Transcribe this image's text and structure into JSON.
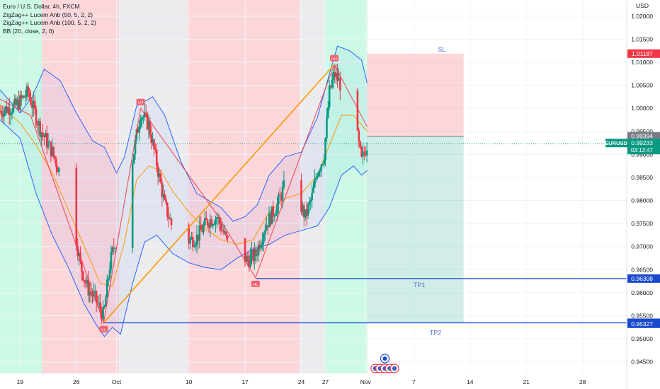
{
  "legend": {
    "symbol_line": "Euro / U.S. Dollar, 4h, FXCM",
    "indicator_1": "ZigZag++ Lucem Anb (50, 5, 2, 2)",
    "indicator_2": "ZigZag++ Lucem Anb (100, 5, 2, 2)",
    "indicator_3": "BB (20, close, 2, 0)"
  },
  "axis": {
    "currency": "USD"
  },
  "colors": {
    "bull": "#089981",
    "bear": "#f23645",
    "bb": "#2962ff",
    "basis": "#ff9800",
    "zigzag": "#f23645",
    "zigzag_long": "#ff9800",
    "level": "#1848cc",
    "zone_red": "#f23645",
    "zone_green": "#00e676",
    "zone_grey": "#b2b5be"
  },
  "chart_data": {
    "type": "candlestick",
    "title": "Euro / U.S. Dollar, 4h, FXCM",
    "y_ticks": [
      "1.02000",
      "1.01500",
      "1.01000",
      "1.00500",
      "1.00000",
      "0.99500",
      "0.99000",
      "0.98500",
      "0.98000",
      "0.97500",
      "0.97000",
      "0.96500",
      "0.96000",
      "0.95500",
      "0.95000",
      "0.94500"
    ],
    "ylim": [
      0.9425,
      1.0235
    ],
    "x_ticks": [
      "19",
      "26",
      "Oct",
      "10",
      "17",
      "24",
      "27",
      "Nov",
      "7",
      "14",
      "21",
      "28"
    ],
    "x_tick_days": [
      0,
      7,
      12,
      21,
      28,
      35,
      38,
      43,
      49,
      56,
      63,
      70
    ],
    "xlim_days": [
      -2.5,
      75.5
    ],
    "last_day": 43.2,
    "price_labels": [
      {
        "name": "sl-price",
        "price": 1.01187,
        "text": "1.01187",
        "color": "#f23645"
      },
      {
        "name": "entry-price",
        "price": 0.99394,
        "text": "0.99394",
        "color": "#787b86"
      },
      {
        "name": "eurusd-price",
        "price": 0.99233,
        "text": "EURUSD  0.99233",
        "sub": "03:13:47",
        "color": "#089981"
      },
      {
        "name": "tp1-price",
        "price": 0.96308,
        "text": "0.96308",
        "color": "#1848cc"
      },
      {
        "name": "tp2-price",
        "price": 0.95348,
        "text": "0.95348",
        "color": "#1848cc"
      },
      {
        "name": "tp2-alt-price",
        "price": 0.95327,
        "text": "0.95327",
        "color": "#1848cc"
      }
    ],
    "position": {
      "entry": 0.99394,
      "stop": 1.01187,
      "target": 0.95348,
      "start_day": 43.2,
      "end_day": 55.2
    },
    "position_labels": {
      "sl": "SL",
      "tp1": "TP1",
      "tp2": "TP2"
    },
    "levels": [
      {
        "name": "tp1-level",
        "price": 0.96308,
        "from_day": 29.3
      },
      {
        "name": "tp2-level",
        "price": 0.95348,
        "from_day": 10.4
      }
    ],
    "zones": [
      {
        "from": -2.5,
        "to": 2.7,
        "kind": "green"
      },
      {
        "from": 2.7,
        "to": 12.3,
        "kind": "red"
      },
      {
        "from": 12.3,
        "to": 20.8,
        "kind": "grey"
      },
      {
        "from": 20.8,
        "to": 34.8,
        "kind": "red"
      },
      {
        "from": 34.8,
        "to": 37.9,
        "kind": "grey"
      },
      {
        "from": 37.9,
        "to": 43.2,
        "kind": "green"
      }
    ],
    "zigzag_short": [
      [
        -2.5,
        1.002
      ],
      [
        1.3,
        0.9985
      ],
      [
        10.4,
        0.9535
      ],
      [
        15.0,
        1.0
      ],
      [
        24.5,
        0.977
      ],
      [
        29.3,
        0.9633
      ],
      [
        39.1,
        1.0095
      ],
      [
        43.2,
        0.996
      ]
    ],
    "zigzag_long": [
      [
        10.4,
        0.9535
      ],
      [
        39.1,
        1.0095
      ]
    ],
    "pivot_badges": [
      {
        "day": 15.0,
        "price": 1.0,
        "dir": "up",
        "text": "LH"
      },
      {
        "day": 39.1,
        "price": 1.0095,
        "dir": "up",
        "text": "HH"
      },
      {
        "day": 10.4,
        "price": 0.9535,
        "dir": "down",
        "text": "LL"
      },
      {
        "day": 29.3,
        "price": 0.9633,
        "dir": "down",
        "text": "HL"
      }
    ],
    "anchors": [
      [
        -2.5,
        0.9995
      ],
      [
        -0.5,
        1.0005
      ],
      [
        1.0,
        1.0035
      ],
      [
        2.5,
        0.9955
      ],
      [
        4.0,
        0.9905
      ],
      [
        5.3,
        0.9845
      ],
      [
        6.5,
        0.977
      ],
      [
        7.5,
        0.966
      ],
      [
        8.4,
        0.961
      ],
      [
        9.4,
        0.9585
      ],
      [
        10.4,
        0.955
      ],
      [
        11.2,
        0.9665
      ],
      [
        12.3,
        0.9745
      ],
      [
        13.3,
        0.9815
      ],
      [
        14.2,
        0.991
      ],
      [
        15.0,
        0.999
      ],
      [
        16.0,
        0.9965
      ],
      [
        17.0,
        0.988
      ],
      [
        18.0,
        0.979
      ],
      [
        19.0,
        0.974
      ],
      [
        20.5,
        0.971
      ],
      [
        22.0,
        0.972
      ],
      [
        23.3,
        0.9755
      ],
      [
        24.5,
        0.9765
      ],
      [
        25.8,
        0.971
      ],
      [
        27.0,
        0.969
      ],
      [
        28.3,
        0.967
      ],
      [
        29.3,
        0.9682
      ],
      [
        30.5,
        0.9745
      ],
      [
        32.0,
        0.979
      ],
      [
        33.0,
        0.9835
      ],
      [
        34.0,
        0.9855
      ],
      [
        34.8,
        0.9795
      ],
      [
        35.5,
        0.9765
      ],
      [
        36.3,
        0.9805
      ],
      [
        37.0,
        0.9865
      ],
      [
        37.8,
        0.9895
      ],
      [
        38.5,
        1.0035
      ],
      [
        39.1,
        1.0075
      ],
      [
        39.8,
        1.0055
      ],
      [
        40.5,
        1.0015
      ],
      [
        41.3,
        0.9965
      ],
      [
        42.0,
        0.9935
      ],
      [
        42.5,
        0.9885
      ],
      [
        43.2,
        0.9923
      ]
    ],
    "bb_upper": [
      [
        -2.5,
        1.004
      ],
      [
        0,
        0.999
      ],
      [
        1.5,
        1.0025
      ],
      [
        3,
        1.0085
      ],
      [
        5,
        1.006
      ],
      [
        7,
        0.999
      ],
      [
        9,
        0.993
      ],
      [
        10.5,
        0.9915
      ],
      [
        12,
        0.986
      ],
      [
        13,
        0.9895
      ],
      [
        14.5,
        1.0005
      ],
      [
        16.5,
        1.0025
      ],
      [
        18,
        0.9985
      ],
      [
        20,
        0.9885
      ],
      [
        22,
        0.9815
      ],
      [
        25,
        0.9785
      ],
      [
        26.5,
        0.9755
      ],
      [
        28,
        0.9765
      ],
      [
        29.5,
        0.979
      ],
      [
        31,
        0.9855
      ],
      [
        33,
        0.9895
      ],
      [
        35,
        0.9905
      ],
      [
        37,
        0.998
      ],
      [
        38.5,
        1.0075
      ],
      [
        39.5,
        1.0135
      ],
      [
        41,
        1.0125
      ],
      [
        42.5,
        1.0105
      ],
      [
        43.2,
        1.0055
      ]
    ],
    "bb_lower": [
      [
        -2.5,
        0.9975
      ],
      [
        0,
        0.9935
      ],
      [
        2,
        0.9815
      ],
      [
        4,
        0.9725
      ],
      [
        6,
        0.9655
      ],
      [
        8,
        0.9575
      ],
      [
        9.5,
        0.953
      ],
      [
        10.5,
        0.9505
      ],
      [
        11.5,
        0.9525
      ],
      [
        12.5,
        0.951
      ],
      [
        14,
        0.962
      ],
      [
        15.5,
        0.971
      ],
      [
        17,
        0.9725
      ],
      [
        19,
        0.9685
      ],
      [
        21,
        0.9665
      ],
      [
        23,
        0.9655
      ],
      [
        25,
        0.965
      ],
      [
        27,
        0.9675
      ],
      [
        29,
        0.9695
      ],
      [
        31,
        0.9705
      ],
      [
        33,
        0.9725
      ],
      [
        35,
        0.9735
      ],
      [
        37,
        0.9745
      ],
      [
        38.5,
        0.9785
      ],
      [
        40,
        0.9855
      ],
      [
        41.5,
        0.9875
      ],
      [
        42.5,
        0.9855
      ],
      [
        43.2,
        0.9865
      ]
    ],
    "bb_basis": [
      [
        -2.5,
        1.0008
      ],
      [
        0,
        0.9968
      ],
      [
        2,
        0.992
      ],
      [
        4,
        0.986
      ],
      [
        6,
        0.978
      ],
      [
        8,
        0.97
      ],
      [
        10,
        0.962
      ],
      [
        11.5,
        0.9615
      ],
      [
        13,
        0.971
      ],
      [
        14.5,
        0.9845
      ],
      [
        16,
        0.9875
      ],
      [
        17.5,
        0.9865
      ],
      [
        19,
        0.982
      ],
      [
        21,
        0.9775
      ],
      [
        23,
        0.974
      ],
      [
        25,
        0.9715
      ],
      [
        27,
        0.9705
      ],
      [
        29,
        0.9715
      ],
      [
        31,
        0.9775
      ],
      [
        33,
        0.9805
      ],
      [
        35,
        0.9815
      ],
      [
        37,
        0.9855
      ],
      [
        38.5,
        0.992
      ],
      [
        40,
        0.9985
      ],
      [
        41.5,
        0.9985
      ],
      [
        43.2,
        0.995
      ]
    ],
    "event_icon_days": [
      44.2,
      44.8,
      45.4,
      46.0,
      46.6
    ],
    "events_above": 1
  }
}
